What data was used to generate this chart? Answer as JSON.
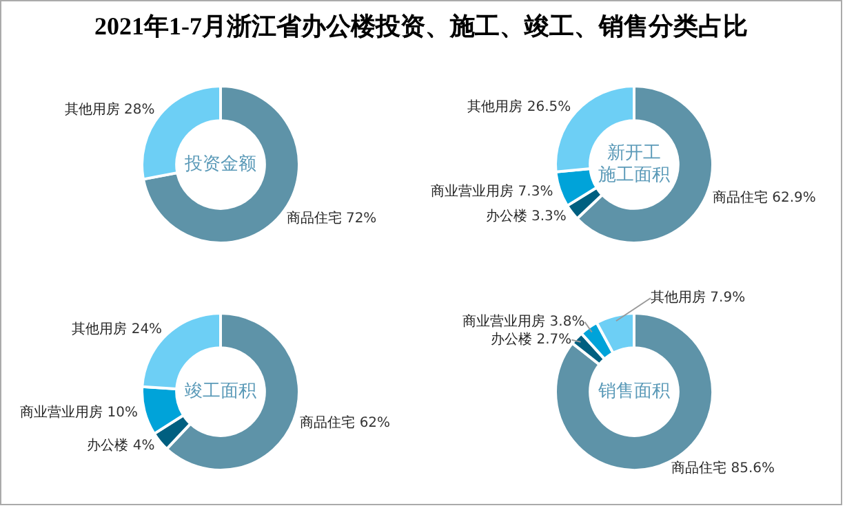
{
  "chart_data": [
    {
      "type": "donut",
      "title": "2021年1-7月浙江省办公楼投资、施工、竣工、销售分类占比",
      "subtitle": "投资金额",
      "categories": [
        "商品住宅",
        "其他用房"
      ],
      "values": [
        72,
        28
      ],
      "value_labels": [
        "72%",
        "28%"
      ],
      "colors": [
        "#5e93a8",
        "#6dcff5"
      ],
      "legend": false
    },
    {
      "type": "donut",
      "subtitle": "新开工施工面积",
      "categories": [
        "商品住宅",
        "办公楼",
        "商业营业用房",
        "其他用房"
      ],
      "values": [
        62.9,
        3.3,
        7.3,
        26.5
      ],
      "value_labels": [
        "62.9%",
        "3.3%",
        "7.3%",
        "26.5%"
      ],
      "colors": [
        "#5e93a8",
        "#005f80",
        "#00a3d9",
        "#6dcff5"
      ],
      "legend": false
    },
    {
      "type": "donut",
      "subtitle": "竣工面积",
      "categories": [
        "商品住宅",
        "办公楼",
        "商业营业用房",
        "其他用房"
      ],
      "values": [
        62,
        4,
        10,
        24
      ],
      "value_labels": [
        "62%",
        "4%",
        "10%",
        "24%"
      ],
      "colors": [
        "#5e93a8",
        "#005f80",
        "#00a3d9",
        "#6dcff5"
      ],
      "legend": false
    },
    {
      "type": "donut",
      "subtitle": "销售面积",
      "categories": [
        "商品住宅",
        "办公楼",
        "商业营业用房",
        "其他用房"
      ],
      "values": [
        85.6,
        2.7,
        3.8,
        7.9
      ],
      "value_labels": [
        "85.6%",
        "2.7%",
        "3.8%",
        "7.9%"
      ],
      "colors": [
        "#5e93a8",
        "#005f80",
        "#00a3d9",
        "#6dcff5"
      ],
      "legend": false
    }
  ]
}
